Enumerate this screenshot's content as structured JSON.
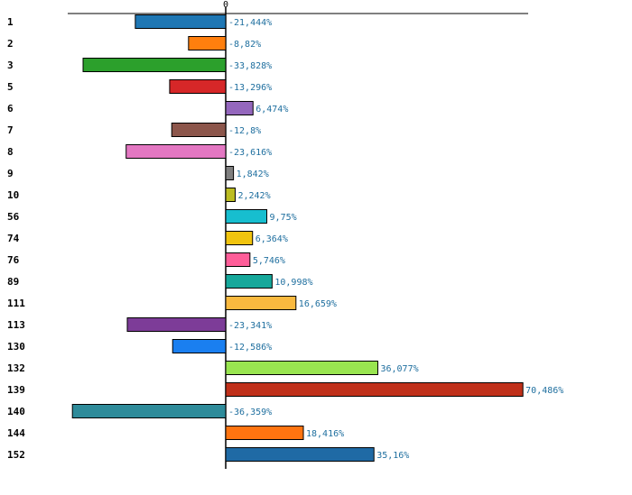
{
  "chart_data": {
    "type": "bar",
    "orientation": "horizontal",
    "title": "",
    "xlabel": "",
    "ylabel": "",
    "zero_tick_label": "0",
    "xlim": [
      -45.5,
      95
    ],
    "grid": false,
    "legend": "none",
    "categories": [
      "1",
      "2",
      "3",
      "5",
      "6",
      "7",
      "8",
      "9",
      "10",
      "56",
      "74",
      "76",
      "89",
      "111",
      "113",
      "130",
      "132",
      "139",
      "140",
      "144",
      "152"
    ],
    "values": [
      -21.444,
      -8.82,
      -33.828,
      -13.296,
      6.474,
      -12.8,
      -23.616,
      1.842,
      2.242,
      9.75,
      6.364,
      5.746,
      10.998,
      16.659,
      -23.341,
      -12.586,
      36.077,
      70.486,
      -36.359,
      18.416,
      35.16
    ],
    "value_labels": [
      "-21,444%",
      "-8,82%",
      "-33,828%",
      "-13,296%",
      "6,474%",
      "-12,8%",
      "-23,616%",
      "1,842%",
      "2,242%",
      "9,75%",
      "6,364%",
      "5,746%",
      "10,998%",
      "16,659%",
      "-23,341%",
      "-12,586%",
      "36,077%",
      "70,486%",
      "-36,359%",
      "18,416%",
      "35,16%"
    ],
    "colors": [
      "#1f77b4",
      "#ff7f0e",
      "#2ca02c",
      "#d62728",
      "#9467bd",
      "#8c564b",
      "#e377c2",
      "#7f7f7f",
      "#bcbd22",
      "#17becf",
      "#f1c40f",
      "#ff5e99",
      "#16a89b",
      "#f9b93f",
      "#7d3c98",
      "#1a7ff0",
      "#99e550",
      "#c0301a",
      "#2e8b9a",
      "#ff7410",
      "#1f6aa5"
    ]
  }
}
